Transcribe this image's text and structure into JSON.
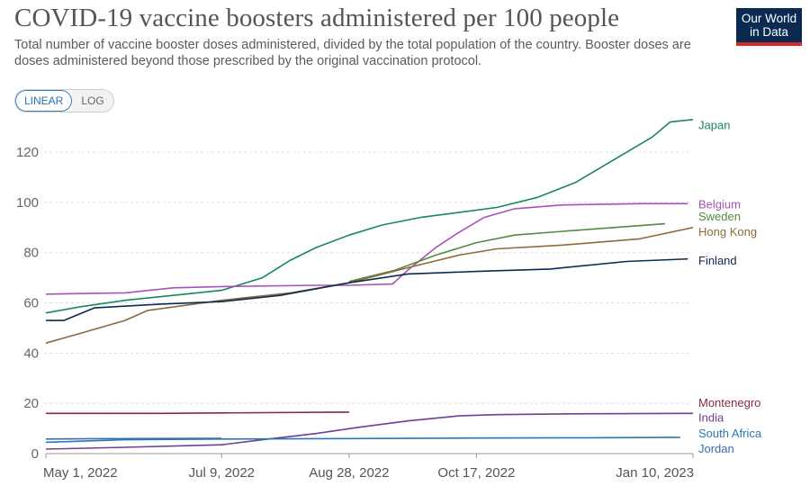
{
  "header": {
    "title": "COVID-19 vaccine boosters administered per 100 people",
    "subtitle": "Total number of vaccine booster doses administered, divided by the total population of the country. Booster doses are doses administered beyond those prescribed by the original vaccination protocol.",
    "logo_line1": "Our World",
    "logo_line2": "in Data"
  },
  "scale_toggle": {
    "linear": "LINEAR",
    "log": "LOG",
    "selected": "linear"
  },
  "chart_data": {
    "type": "line",
    "xlim": [
      "2022-05-01",
      "2023-01-10"
    ],
    "ylim": [
      0,
      134
    ],
    "yticks": [
      0,
      20,
      40,
      60,
      80,
      100,
      120
    ],
    "xticks": [
      {
        "date": "2022-05-01",
        "label": "May 1, 2022"
      },
      {
        "date": "2022-07-09",
        "label": "Jul 9, 2022"
      },
      {
        "date": "2022-08-28",
        "label": "Aug 28, 2022"
      },
      {
        "date": "2022-10-17",
        "label": "Oct 17, 2022"
      },
      {
        "date": "2023-01-10",
        "label": "Jan 10, 2023"
      }
    ],
    "grid": true,
    "series": [
      {
        "name": "Japan",
        "color": "#18875e",
        "points": [
          [
            "2022-05-01",
            56
          ],
          [
            "2022-05-15",
            58.5
          ],
          [
            "2022-06-01",
            61
          ],
          [
            "2022-06-20",
            63
          ],
          [
            "2022-07-09",
            65
          ],
          [
            "2022-07-25",
            70
          ],
          [
            "2022-08-05",
            77
          ],
          [
            "2022-08-15",
            82
          ],
          [
            "2022-08-28",
            87
          ],
          [
            "2022-09-10",
            91
          ],
          [
            "2022-09-25",
            94
          ],
          [
            "2022-10-10",
            96
          ],
          [
            "2022-10-25",
            98
          ],
          [
            "2022-11-10",
            102
          ],
          [
            "2022-11-25",
            108
          ],
          [
            "2022-12-10",
            117
          ],
          [
            "2022-12-25",
            126
          ],
          [
            "2023-01-01",
            132
          ],
          [
            "2023-01-10",
            133
          ]
        ]
      },
      {
        "name": "Belgium",
        "color": "#a652ba",
        "points": [
          [
            "2022-05-01",
            63.5
          ],
          [
            "2022-06-01",
            64
          ],
          [
            "2022-06-20",
            66
          ],
          [
            "2022-07-09",
            66.5
          ],
          [
            "2022-08-15",
            67
          ],
          [
            "2022-08-28",
            67
          ],
          [
            "2022-09-14",
            67.5
          ],
          [
            "2022-09-20",
            73
          ],
          [
            "2022-10-01",
            82
          ],
          [
            "2022-10-10",
            88
          ],
          [
            "2022-10-20",
            94
          ],
          [
            "2022-11-01",
            97.5
          ],
          [
            "2022-11-20",
            99
          ],
          [
            "2022-12-20",
            99.5
          ],
          [
            "2023-01-08",
            99.5
          ]
        ]
      },
      {
        "name": "Sweden",
        "color": "#58883f",
        "points": [
          [
            "2022-08-28",
            68.5
          ],
          [
            "2022-09-15",
            73
          ],
          [
            "2022-10-01",
            79
          ],
          [
            "2022-10-17",
            84
          ],
          [
            "2022-11-01",
            87
          ],
          [
            "2022-11-20",
            88.5
          ],
          [
            "2022-12-10",
            90
          ],
          [
            "2022-12-30",
            91.5
          ]
        ]
      },
      {
        "name": "Hong Kong",
        "color": "#8c6b3a",
        "points": [
          [
            "2022-05-01",
            44
          ],
          [
            "2022-05-15",
            48
          ],
          [
            "2022-06-01",
            53
          ],
          [
            "2022-06-10",
            57
          ],
          [
            "2022-07-09",
            61
          ],
          [
            "2022-08-05",
            64
          ],
          [
            "2022-08-28",
            68
          ],
          [
            "2022-09-20",
            74
          ],
          [
            "2022-10-10",
            79
          ],
          [
            "2022-10-25",
            81.5
          ],
          [
            "2022-11-20",
            83
          ],
          [
            "2022-12-20",
            85.5
          ],
          [
            "2023-01-10",
            90
          ]
        ]
      },
      {
        "name": "Finland",
        "color": "#0a2b52",
        "points": [
          [
            "2022-05-01",
            53
          ],
          [
            "2022-05-08",
            53
          ],
          [
            "2022-05-20",
            58
          ],
          [
            "2022-06-15",
            59.5
          ],
          [
            "2022-07-09",
            60.5
          ],
          [
            "2022-08-01",
            63
          ],
          [
            "2022-08-28",
            68
          ],
          [
            "2022-09-20",
            71.5
          ],
          [
            "2022-10-17",
            72.5
          ],
          [
            "2022-11-15",
            73.5
          ],
          [
            "2022-12-15",
            76.5
          ],
          [
            "2023-01-08",
            77.5
          ]
        ]
      },
      {
        "name": "Montenegro",
        "color": "#8a2a3a",
        "points": [
          [
            "2022-05-01",
            16
          ],
          [
            "2022-06-15",
            16
          ],
          [
            "2022-07-09",
            16.2
          ],
          [
            "2022-08-28",
            16.5
          ]
        ]
      },
      {
        "name": "India",
        "color": "#6d3e91",
        "points": [
          [
            "2022-05-01",
            1.8
          ],
          [
            "2022-06-01",
            2.5
          ],
          [
            "2022-07-09",
            3.5
          ],
          [
            "2022-07-25",
            5.5
          ],
          [
            "2022-08-15",
            8
          ],
          [
            "2022-09-01",
            10.5
          ],
          [
            "2022-09-20",
            13
          ],
          [
            "2022-10-10",
            15
          ],
          [
            "2022-10-25",
            15.5
          ],
          [
            "2022-11-20",
            15.8
          ],
          [
            "2023-01-10",
            16
          ]
        ]
      },
      {
        "name": "South Africa",
        "color": "#2878b4",
        "points": [
          [
            "2022-05-01",
            4.5
          ],
          [
            "2022-06-01",
            5.5
          ],
          [
            "2022-07-09",
            5.8
          ],
          [
            "2022-08-28",
            6
          ],
          [
            "2022-10-17",
            6.2
          ],
          [
            "2022-12-01",
            6.3
          ],
          [
            "2023-01-05",
            6.5
          ]
        ]
      },
      {
        "name": "Jordan",
        "color": "#3c6ea8",
        "points": [
          [
            "2022-05-01",
            5.8
          ],
          [
            "2022-06-01",
            6
          ],
          [
            "2022-07-09",
            6.1
          ]
        ]
      }
    ],
    "labels": [
      {
        "name": "Japan",
        "y": 131
      },
      {
        "name": "Belgium",
        "y": 99.5
      },
      {
        "name": "Sweden",
        "y": 94.5
      },
      {
        "name": "Hong Kong",
        "y": 88.5
      },
      {
        "name": "Finland",
        "y": 77
      },
      {
        "name": "Montenegro",
        "y": 20.5
      },
      {
        "name": "India",
        "y": 14.5
      },
      {
        "name": "South Africa",
        "y": 8.3
      },
      {
        "name": "Jordan",
        "y": 2.2
      }
    ]
  }
}
